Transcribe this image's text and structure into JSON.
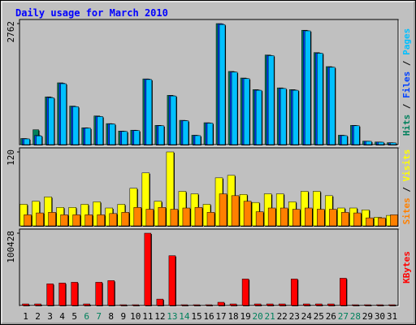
{
  "title": "Daily usage for March 2010",
  "chart_data": [
    {
      "type": "bar",
      "ylim": [
        0,
        2762
      ],
      "yticks": [
        2762
      ],
      "series": [
        {
          "name": "Hits",
          "color": "#00805c",
          "values": [
            140,
            340,
            1090,
            1410,
            880,
            385,
            655,
            480,
            310,
            330,
            1500,
            440,
            1125,
            555,
            215,
            500,
            2762,
            1670,
            1520,
            1255,
            2045,
            1295,
            1255,
            2610,
            2100,
            1780,
            215,
            440,
            80,
            60,
            45
          ]
        },
        {
          "name": "Files",
          "color": "#0040ff",
          "values": [
            135,
            210,
            1080,
            1400,
            870,
            380,
            645,
            475,
            305,
            325,
            1495,
            435,
            1115,
            550,
            210,
            495,
            2755,
            1660,
            1510,
            1245,
            2035,
            1285,
            1245,
            2600,
            2090,
            1770,
            210,
            435,
            78,
            58,
            42
          ]
        },
        {
          "name": "Pages",
          "color": "#00c0ff",
          "values": [
            130,
            200,
            1070,
            1390,
            865,
            375,
            640,
            470,
            300,
            320,
            1485,
            430,
            1110,
            545,
            205,
            490,
            2740,
            1655,
            1505,
            1240,
            2030,
            1280,
            1240,
            2595,
            2085,
            1765,
            205,
            430,
            75,
            55,
            40
          ]
        }
      ],
      "legend_position": "right"
    },
    {
      "type": "bar",
      "ylim": [
        0,
        120
      ],
      "yticks": [
        120
      ],
      "series": [
        {
          "name": "Sites",
          "color": "#ff8000",
          "values": [
            18,
            21,
            22,
            18,
            18,
            18,
            18,
            20,
            22,
            30,
            27,
            30,
            27,
            29,
            30,
            22,
            52,
            49,
            40,
            23,
            29,
            29,
            27,
            29,
            27,
            27,
            22,
            21,
            13,
            13,
            18
          ]
        },
        {
          "name": "Visits",
          "color": "#ffff00",
          "values": [
            35,
            40,
            47,
            30,
            30,
            35,
            39,
            29,
            35,
            61,
            86,
            40,
            120,
            56,
            52,
            35,
            78,
            82,
            51,
            38,
            52,
            52,
            39,
            56,
            56,
            49,
            29,
            29,
            26,
            14,
            17
          ]
        }
      ],
      "legend_position": "right"
    },
    {
      "type": "bar",
      "ylim": [
        0,
        100428
      ],
      "yticks": [
        100428
      ],
      "series": [
        {
          "name": "KBytes",
          "color": "#ff0000",
          "values": [
            2200,
            2200,
            30100,
            31200,
            32300,
            2200,
            32300,
            34600,
            1100,
            1100,
            100428,
            8900,
            69200,
            1100,
            1100,
            1100,
            4500,
            2200,
            36800,
            2200,
            2200,
            2200,
            36800,
            2200,
            2200,
            2200,
            37900,
            1100,
            1100,
            1100,
            1100
          ]
        }
      ],
      "legend_position": "right",
      "categories": [
        "1",
        "2",
        "3",
        "4",
        "5",
        "6",
        "7",
        "8",
        "9",
        "10",
        "11",
        "12",
        "13",
        "14",
        "15",
        "16",
        "17",
        "18",
        "19",
        "20",
        "21",
        "22",
        "23",
        "24",
        "25",
        "26",
        "27",
        "28",
        "29",
        "30",
        "31"
      ],
      "category_colors": [
        "#000000",
        "#000000",
        "#000000",
        "#000000",
        "#000000",
        "#00805c",
        "#00805c",
        "#000000",
        "#000000",
        "#000000",
        "#000000",
        "#000000",
        "#00805c",
        "#00805c",
        "#000000",
        "#000000",
        "#000000",
        "#000000",
        "#000000",
        "#00805c",
        "#00805c",
        "#000000",
        "#000000",
        "#000000",
        "#000000",
        "#000000",
        "#00805c",
        "#00805c",
        "#000000",
        "#000000",
        "#000000"
      ]
    }
  ]
}
